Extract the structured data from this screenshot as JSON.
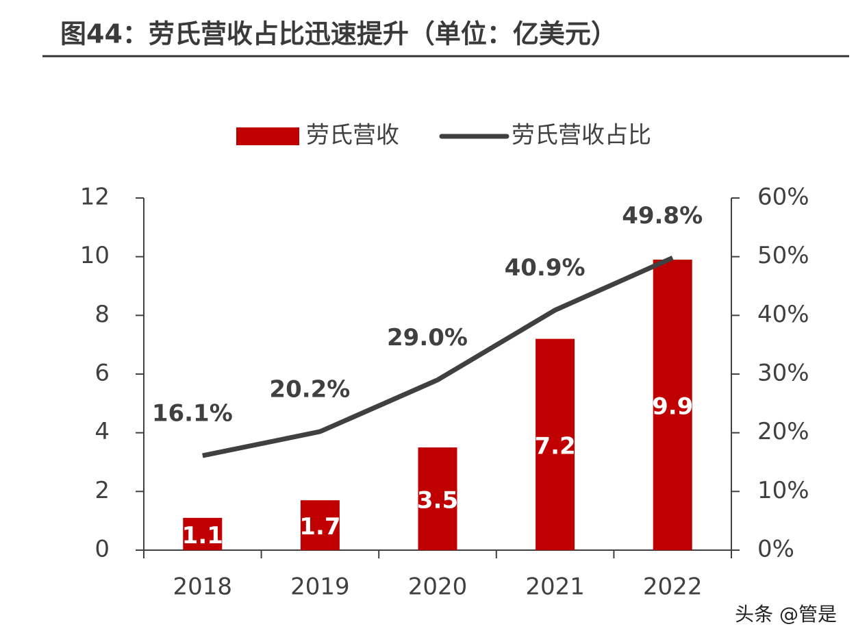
{
  "chart_data": {
    "type": "bar-line",
    "title": "图44：劳氏营收占比迅速提升（单位：亿美元）",
    "categories": [
      "2018",
      "2019",
      "2020",
      "2021",
      "2022"
    ],
    "series": [
      {
        "name": "劳氏营收",
        "type": "bar",
        "color": "#c00000",
        "values": [
          1.1,
          1.7,
          3.5,
          7.2,
          9.9
        ]
      },
      {
        "name": "劳氏营收占比",
        "type": "line",
        "axis": "y2",
        "color": "#404040",
        "values": [
          16.1,
          20.2,
          29.0,
          40.9,
          49.8
        ],
        "value_labels": [
          "16.1%",
          "20.2%",
          "29.0%",
          "40.9%",
          "49.8%"
        ]
      }
    ],
    "ylim": [
      0,
      12
    ],
    "yticks": [
      0,
      2,
      4,
      6,
      8,
      10,
      12
    ],
    "y2lim": [
      0,
      60
    ],
    "y2ticks": [
      {
        "value": 0,
        "label": "0%"
      },
      {
        "value": 10,
        "label": "10%"
      },
      {
        "value": 20,
        "label": "20%"
      },
      {
        "value": 30,
        "label": "30%"
      },
      {
        "value": 40,
        "label": "40%"
      },
      {
        "value": 50,
        "label": "50%"
      },
      {
        "value": 60,
        "label": "60%"
      }
    ],
    "grid": false,
    "legend": "top",
    "watermark": "头条 @管是"
  }
}
